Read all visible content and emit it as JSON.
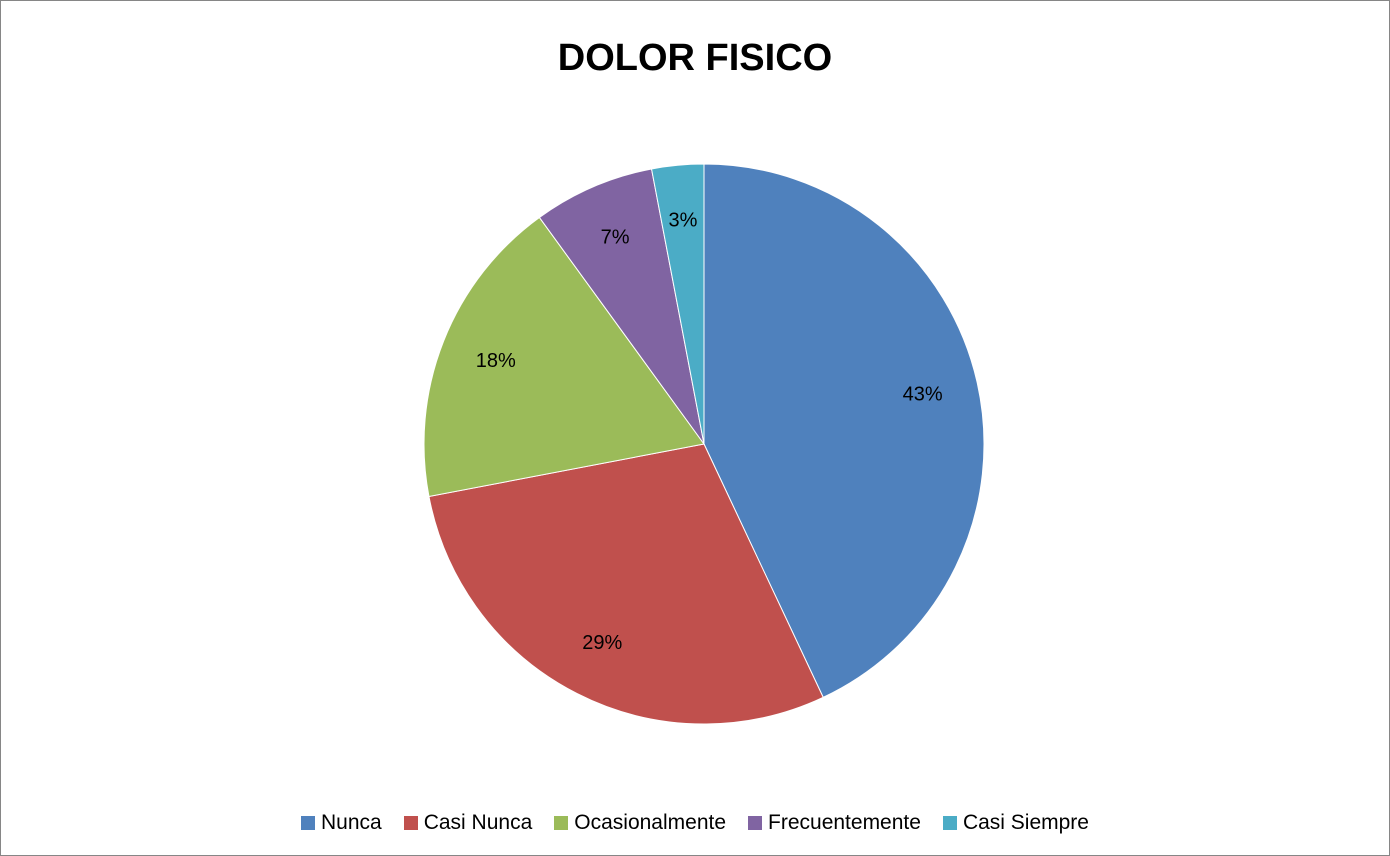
{
  "chart_data": {
    "type": "pie",
    "title": "DOLOR FISICO",
    "legend_position": "bottom",
    "categories": [
      "Nunca",
      "Casi Nunca",
      "Ocasionalmente",
      "Frecuentemente",
      "Casi Siempre"
    ],
    "values": [
      43,
      29,
      18,
      7,
      3
    ],
    "labels": [
      "43%",
      "29%",
      "18%",
      "7%",
      "3%"
    ],
    "colors": [
      "#4F81BD",
      "#C0504D",
      "#9BBB59",
      "#8064A2",
      "#4BACC6"
    ]
  }
}
